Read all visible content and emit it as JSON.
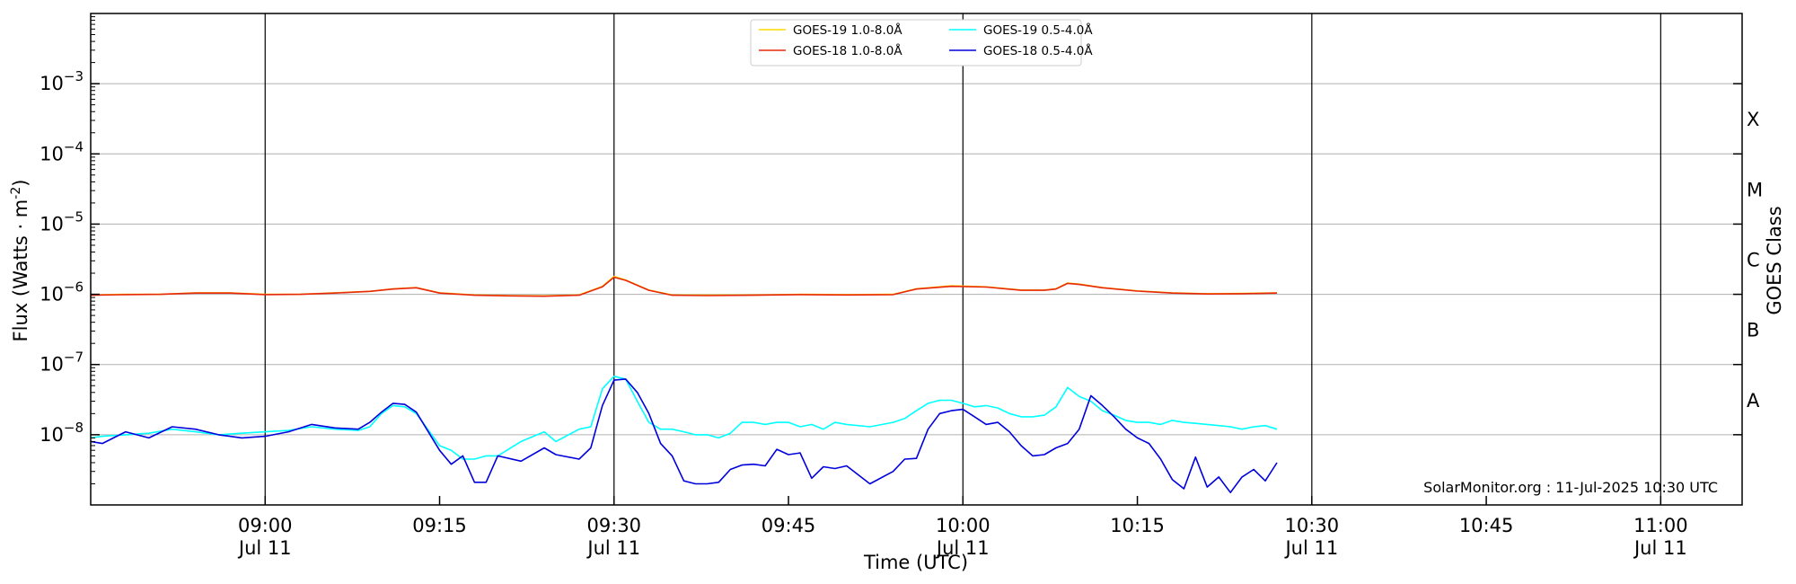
{
  "chart_data": {
    "type": "line",
    "xlabel": "Time (UTC)",
    "ylabel": "Flux (Watts · m",
    "ylabel_exp": "-2",
    "ylabel_close": ")",
    "ylabel_right": "GOES Class",
    "scale_y": "log",
    "x_range": [
      "08:45",
      "11:07"
    ],
    "ylim": [
      1e-09,
      0.01
    ],
    "grid": "horizontal at decades",
    "legend_placement": "top-center",
    "credit": "SolarMonitor.org : 11-Jul-2025 10:30 UTC",
    "x_ticks": [
      {
        "t": "09:00",
        "date": "Jul 11",
        "major": true
      },
      {
        "t": "09:15",
        "date": "",
        "major": false
      },
      {
        "t": "09:30",
        "date": "Jul 11",
        "major": true
      },
      {
        "t": "09:45",
        "date": "",
        "major": false
      },
      {
        "t": "10:00",
        "date": "Jul 11",
        "major": true
      },
      {
        "t": "10:15",
        "date": "",
        "major": false
      },
      {
        "t": "10:30",
        "date": "Jul 11",
        "major": true
      },
      {
        "t": "10:45",
        "date": "",
        "major": false
      },
      {
        "t": "11:00",
        "date": "Jul 11",
        "major": true
      }
    ],
    "y_ticks": [
      {
        "exp": "-3",
        "value": 0.001
      },
      {
        "exp": "-4",
        "value": 0.0001
      },
      {
        "exp": "-5",
        "value": 1e-05
      },
      {
        "exp": "-6",
        "value": 1e-06
      },
      {
        "exp": "-7",
        "value": 1e-07
      },
      {
        "exp": "-8",
        "value": 1e-08
      }
    ],
    "goes_classes": [
      {
        "label": "X",
        "value": 0.000316
      },
      {
        "label": "M",
        "value": 3.16e-05
      },
      {
        "label": "C",
        "value": 3.16e-06
      },
      {
        "label": "B",
        "value": 3.16e-07
      },
      {
        "label": "A",
        "value": 3.16e-08
      }
    ],
    "series": [
      {
        "name": "GOES-19 1.0-8.0Å",
        "color": "#ffd700",
        "times": [
          "08:45",
          "08:48",
          "08:51",
          "08:54",
          "08:57",
          "09:00",
          "09:03",
          "09:06",
          "09:09",
          "09:11",
          "09:13",
          "09:15",
          "09:18",
          "09:21",
          "09:24",
          "09:27",
          "09:29",
          "09:30",
          "09:31",
          "09:33",
          "09:35",
          "09:38",
          "09:42",
          "09:46",
          "09:50",
          "09:54",
          "09:56",
          "09:59",
          "10:02",
          "10:05",
          "10:07",
          "10:08",
          "10:09",
          "10:10",
          "10:12",
          "10:15",
          "10:18",
          "10:21",
          "10:24",
          "10:27"
        ],
        "values": [
          9.8e-07,
          1e-06,
          1e-06,
          1.05e-06,
          1.05e-06,
          1e-06,
          1e-06,
          1.05e-06,
          1.1e-06,
          1.2e-06,
          1.25e-06,
          1.05e-06,
          9.8e-07,
          9.6e-07,
          9.5e-07,
          9.8e-07,
          1.3e-06,
          1.8e-06,
          1.6e-06,
          1.15e-06,
          9.8e-07,
          9.7e-07,
          9.8e-07,
          1e-06,
          9.9e-07,
          1e-06,
          1.2e-06,
          1.32e-06,
          1.28e-06,
          1.15e-06,
          1.15e-06,
          1.2e-06,
          1.45e-06,
          1.4e-06,
          1.25e-06,
          1.12e-06,
          1.05e-06,
          1.02e-06,
          1.03e-06,
          1.05e-06
        ]
      },
      {
        "name": "GOES-18 1.0-8.0Å",
        "color": "#e8280e",
        "times": [
          "08:45",
          "08:48",
          "08:51",
          "08:54",
          "08:57",
          "09:00",
          "09:03",
          "09:06",
          "09:09",
          "09:11",
          "09:13",
          "09:15",
          "09:18",
          "09:21",
          "09:24",
          "09:27",
          "09:29",
          "09:30",
          "09:31",
          "09:33",
          "09:35",
          "09:38",
          "09:42",
          "09:46",
          "09:50",
          "09:54",
          "09:56",
          "09:59",
          "10:02",
          "10:05",
          "10:07",
          "10:08",
          "10:09",
          "10:10",
          "10:12",
          "10:15",
          "10:18",
          "10:21",
          "10:24",
          "10:27"
        ],
        "values": [
          9.7e-07,
          9.9e-07,
          1e-06,
          1.04e-06,
          1.04e-06,
          9.9e-07,
          1e-06,
          1.04e-06,
          1.1e-06,
          1.19e-06,
          1.24e-06,
          1.04e-06,
          9.7e-07,
          9.5e-07,
          9.4e-07,
          9.7e-07,
          1.28e-06,
          1.75e-06,
          1.58e-06,
          1.14e-06,
          9.7e-07,
          9.6e-07,
          9.7e-07,
          9.9e-07,
          9.8e-07,
          9.9e-07,
          1.19e-06,
          1.3e-06,
          1.27e-06,
          1.14e-06,
          1.14e-06,
          1.19e-06,
          1.43e-06,
          1.38e-06,
          1.24e-06,
          1.11e-06,
          1.04e-06,
          1.01e-06,
          1.02e-06,
          1.04e-06
        ]
      },
      {
        "name": "GOES-19 0.5-4.0Å",
        "color": "#00ffff",
        "times": [
          "08:45",
          "08:46",
          "08:48",
          "08:50",
          "08:52",
          "08:54",
          "08:56",
          "08:58",
          "09:00",
          "09:02",
          "09:04",
          "09:06",
          "09:08",
          "09:09",
          "09:10",
          "09:11",
          "09:12",
          "09:13",
          "09:15",
          "09:16",
          "09:17",
          "09:18",
          "09:19",
          "09:20",
          "09:22",
          "09:24",
          "09:25",
          "09:27",
          "09:28",
          "09:29",
          "09:30",
          "09:31",
          "09:32",
          "09:33",
          "09:34",
          "09:35",
          "09:36",
          "09:37",
          "09:38",
          "09:39",
          "09:40",
          "09:41",
          "09:42",
          "09:43",
          "09:44",
          "09:45",
          "09:46",
          "09:47",
          "09:48",
          "09:49",
          "09:50",
          "09:52",
          "09:54",
          "09:55",
          "09:56",
          "09:57",
          "09:58",
          "09:59",
          "10:00",
          "10:01",
          "10:02",
          "10:03",
          "10:04",
          "10:05",
          "10:06",
          "10:07",
          "10:08",
          "10:09",
          "10:10",
          "10:11",
          "10:12",
          "10:13",
          "10:14",
          "10:15",
          "10:16",
          "10:17",
          "10:18",
          "10:19",
          "10:20",
          "10:21",
          "10:22",
          "10:23",
          "10:24",
          "10:25",
          "10:26",
          "10:27"
        ],
        "values": [
          9e-09,
          9.5e-09,
          1e-08,
          1.05e-08,
          1.2e-08,
          1.1e-08,
          1e-08,
          1.05e-08,
          1.1e-08,
          1.15e-08,
          1.3e-08,
          1.2e-08,
          1.15e-08,
          1.3e-08,
          2e-08,
          2.6e-08,
          2.5e-08,
          2e-08,
          7e-09,
          6e-09,
          4.5e-09,
          4.5e-09,
          5e-09,
          5e-09,
          8e-09,
          1.1e-08,
          8e-09,
          1.2e-08,
          1.3e-08,
          4.5e-08,
          6.8e-08,
          6.2e-08,
          3e-08,
          1.5e-08,
          1.2e-08,
          1.2e-08,
          1.1e-08,
          1e-08,
          1e-08,
          9e-09,
          1.05e-08,
          1.5e-08,
          1.5e-08,
          1.4e-08,
          1.5e-08,
          1.5e-08,
          1.3e-08,
          1.4e-08,
          1.2e-08,
          1.5e-08,
          1.4e-08,
          1.3e-08,
          1.5e-08,
          1.7e-08,
          2.2e-08,
          2.8e-08,
          3.1e-08,
          3.1e-08,
          2.8e-08,
          2.5e-08,
          2.6e-08,
          2.4e-08,
          2e-08,
          1.8e-08,
          1.8e-08,
          1.9e-08,
          2.5e-08,
          4.7e-08,
          3.5e-08,
          3e-08,
          2.2e-08,
          1.9e-08,
          1.6e-08,
          1.5e-08,
          1.5e-08,
          1.4e-08,
          1.6e-08,
          1.5e-08,
          1.45e-08,
          1.4e-08,
          1.35e-08,
          1.3e-08,
          1.2e-08,
          1.3e-08,
          1.35e-08,
          1.2e-08
        ]
      },
      {
        "name": "GOES-18 0.5-4.0Å",
        "color": "#0000dd",
        "times": [
          "08:45",
          "08:46",
          "08:48",
          "08:50",
          "08:52",
          "08:54",
          "08:56",
          "08:58",
          "09:00",
          "09:02",
          "09:04",
          "09:06",
          "09:08",
          "09:09",
          "09:10",
          "09:11",
          "09:12",
          "09:13",
          "09:15",
          "09:16",
          "09:17",
          "09:18",
          "09:19",
          "09:20",
          "09:22",
          "09:24",
          "09:25",
          "09:27",
          "09:28",
          "09:29",
          "09:30",
          "09:31",
          "09:32",
          "09:33",
          "09:34",
          "09:35",
          "09:36",
          "09:37",
          "09:38",
          "09:39",
          "09:40",
          "09:41",
          "09:42",
          "09:43",
          "09:44",
          "09:45",
          "09:46",
          "09:47",
          "09:48",
          "09:49",
          "09:50",
          "09:52",
          "09:54",
          "09:55",
          "09:56",
          "09:57",
          "09:58",
          "09:59",
          "10:00",
          "10:01",
          "10:02",
          "10:03",
          "10:04",
          "10:05",
          "10:06",
          "10:07",
          "10:08",
          "10:09",
          "10:10",
          "10:11",
          "10:12",
          "10:13",
          "10:14",
          "10:15",
          "10:16",
          "10:17",
          "10:18",
          "10:19",
          "10:20",
          "10:21",
          "10:22",
          "10:23",
          "10:24",
          "10:25",
          "10:26",
          "10:27"
        ],
        "values": [
          8e-09,
          7.5e-09,
          1.1e-08,
          9e-09,
          1.3e-08,
          1.2e-08,
          1e-08,
          9e-09,
          9.5e-09,
          1.1e-08,
          1.4e-08,
          1.25e-08,
          1.2e-08,
          1.5e-08,
          2.1e-08,
          2.8e-08,
          2.7e-08,
          2.1e-08,
          6e-09,
          3.8e-09,
          5e-09,
          2.1e-09,
          2.1e-09,
          5e-09,
          4.2e-09,
          6.5e-09,
          5.2e-09,
          4.5e-09,
          6.5e-09,
          2.6e-08,
          6e-08,
          6.2e-08,
          4e-08,
          2e-08,
          7.5e-09,
          5e-09,
          2.2e-09,
          2e-09,
          2e-09,
          2.1e-09,
          3.2e-09,
          3.7e-09,
          3.8e-09,
          3.6e-09,
          6.2e-09,
          5.2e-09,
          5.5e-09,
          2.4e-09,
          3.5e-09,
          3.3e-09,
          3.6e-09,
          2e-09,
          3e-09,
          4.5e-09,
          4.6e-09,
          1.2e-08,
          2e-08,
          2.2e-08,
          2.3e-08,
          1.8e-08,
          1.4e-08,
          1.5e-08,
          1.1e-08,
          7e-09,
          5e-09,
          5.2e-09,
          6.5e-09,
          7.5e-09,
          1.2e-08,
          3.6e-08,
          2.6e-08,
          1.8e-08,
          1.2e-08,
          9e-09,
          7.5e-09,
          4.5e-09,
          2.3e-09,
          1.7e-09,
          4.8e-09,
          1.8e-09,
          2.5e-09,
          1.5e-09,
          2.5e-09,
          3.2e-09,
          2.2e-09,
          4e-09
        ]
      }
    ]
  }
}
